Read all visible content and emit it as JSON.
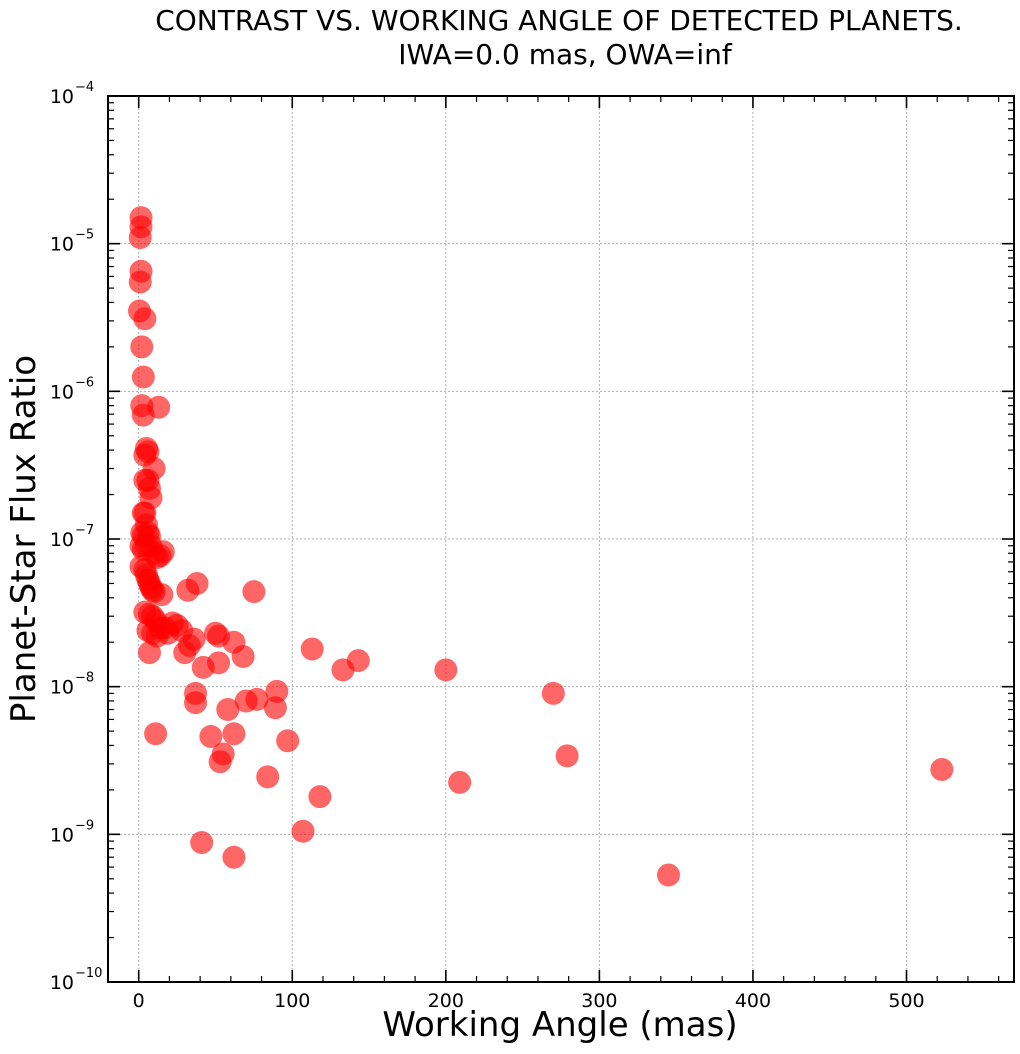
{
  "chart_data": {
    "type": "scatter",
    "title_line1": "CONTRAST VS. WORKING ANGLE OF DETECTED PLANETS.",
    "title_line2": "IWA=0.0 mas, OWA=inf",
    "xlabel": "Working Angle (mas)",
    "ylabel": "Planet-Star Flux Ratio",
    "xlim": [
      -20,
      570
    ],
    "ylim": [
      1e-10,
      0.0001
    ],
    "yscale": "log",
    "grid": true,
    "marker_color": "#ff0000",
    "marker_alpha": 0.6,
    "xticks": [
      0,
      100,
      200,
      300,
      400,
      500
    ],
    "xtick_labels": [
      "0",
      "100",
      "200",
      "300",
      "400",
      "500"
    ],
    "yticks": [
      -10,
      -9,
      -8,
      -7,
      -6,
      -5,
      -4
    ],
    "ytick_base": "10",
    "ytick_exponents": [
      "−10",
      "−9",
      "−8",
      "−7",
      "−6",
      "−5",
      "−4"
    ],
    "points": [
      [
        1.5,
        1.5e-05
      ],
      [
        1.5,
        1.3e-05
      ],
      [
        1.0,
        1.1e-05
      ],
      [
        1.5,
        6.5e-06
      ],
      [
        1.0,
        5.5e-06
      ],
      [
        0.5,
        3.5e-06
      ],
      [
        4.0,
        3.1e-06
      ],
      [
        2.0,
        2e-06
      ],
      [
        3.0,
        1.25e-06
      ],
      [
        2.0,
        8e-07
      ],
      [
        13.0,
        7.8e-07
      ],
      [
        3.0,
        6.9e-07
      ],
      [
        5.0,
        4.1e-07
      ],
      [
        4.0,
        3.7e-07
      ],
      [
        6.0,
        3.9e-07
      ],
      [
        10.0,
        3e-07
      ],
      [
        4.0,
        2.5e-07
      ],
      [
        6.0,
        2.5e-07
      ],
      [
        7.0,
        2.2e-07
      ],
      [
        8.0,
        1.9e-07
      ],
      [
        3.0,
        1.5e-07
      ],
      [
        4.0,
        1.5e-07
      ],
      [
        5.0,
        1.25e-07
      ],
      [
        2.0,
        1.1e-07
      ],
      [
        3.0,
        1.05e-07
      ],
      [
        6.0,
        1.1e-07
      ],
      [
        7.0,
        1.05e-07
      ],
      [
        1.5,
        9e-08
      ],
      [
        3.0,
        8.5e-08
      ],
      [
        5.0,
        9e-08
      ],
      [
        8.0,
        9e-08
      ],
      [
        10.0,
        8e-08
      ],
      [
        12.0,
        7.5e-08
      ],
      [
        16.0,
        8.2e-08
      ],
      [
        14.0,
        7.7e-08
      ],
      [
        1.5,
        6.5e-08
      ],
      [
        4.0,
        6.2e-08
      ],
      [
        5.0,
        5.7e-08
      ],
      [
        6.0,
        5.3e-08
      ],
      [
        7.0,
        5e-08
      ],
      [
        8.0,
        4.7e-08
      ],
      [
        9.0,
        4.5e-08
      ],
      [
        10.0,
        4.4e-08
      ],
      [
        15.0,
        4.2e-08
      ],
      [
        4.0,
        3.2e-08
      ],
      [
        7.0,
        3.1e-08
      ],
      [
        9.0,
        3e-08
      ],
      [
        11.0,
        2.8e-08
      ],
      [
        6.0,
        2.4e-08
      ],
      [
        9.0,
        2.3e-08
      ],
      [
        12.0,
        2.2e-08
      ],
      [
        14.0,
        2.5e-08
      ],
      [
        17.0,
        2.5e-08
      ],
      [
        19.0,
        2.3e-08
      ],
      [
        22.0,
        2.7e-08
      ],
      [
        25.0,
        2.6e-08
      ],
      [
        28.0,
        2.4e-08
      ],
      [
        7.0,
        1.7e-08
      ],
      [
        32.0,
        4.5e-08
      ],
      [
        38.0,
        5e-08
      ],
      [
        75.0,
        4.4e-08
      ],
      [
        33.0,
        1.9e-08
      ],
      [
        36.0,
        2.1e-08
      ],
      [
        30.0,
        1.7e-08
      ],
      [
        50.0,
        2.3e-08
      ],
      [
        52.0,
        2.2e-08
      ],
      [
        62.0,
        2e-08
      ],
      [
        68.0,
        1.6e-08
      ],
      [
        42.0,
        1.35e-08
      ],
      [
        52.0,
        1.45e-08
      ],
      [
        113.0,
        1.8e-08
      ],
      [
        133.0,
        1.3e-08
      ],
      [
        143.0,
        1.5e-08
      ],
      [
        200.0,
        1.3e-08
      ],
      [
        270.0,
        9e-09
      ],
      [
        37.0,
        9e-09
      ],
      [
        37.0,
        7.8e-09
      ],
      [
        70.0,
        8e-09
      ],
      [
        77.0,
        8.2e-09
      ],
      [
        90.0,
        9.3e-09
      ],
      [
        89.0,
        7.2e-09
      ],
      [
        58.0,
        7e-09
      ],
      [
        11.0,
        4.8e-09
      ],
      [
        47.0,
        4.6e-09
      ],
      [
        62.0,
        4.8e-09
      ],
      [
        97.0,
        4.3e-09
      ],
      [
        55.0,
        3.5e-09
      ],
      [
        53.0,
        3.1e-09
      ],
      [
        279.0,
        3.4e-09
      ],
      [
        523.0,
        2.75e-09
      ],
      [
        84.0,
        2.45e-09
      ],
      [
        209.0,
        2.25e-09
      ],
      [
        118.0,
        1.8e-09
      ],
      [
        107.0,
        1.05e-09
      ],
      [
        41.0,
        8.8e-10
      ],
      [
        62.0,
        7e-10
      ],
      [
        345.0,
        5.3e-10
      ]
    ]
  }
}
